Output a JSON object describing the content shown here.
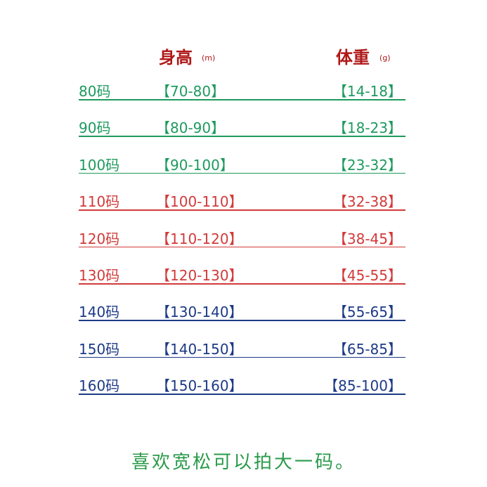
{
  "header": {
    "height_label": "身高",
    "height_unit": "(m)",
    "weight_label": "体重",
    "weight_unit": "(g)"
  },
  "table": {
    "rows": [
      {
        "size": "80码",
        "height": "【70-80】",
        "weight": "【14-18】",
        "color": "#1e9a5e"
      },
      {
        "size": "90码",
        "height": "【80-90】",
        "weight": "【18-23】",
        "color": "#1e9a5e"
      },
      {
        "size": "100码",
        "height": "【90-100】",
        "weight": "【23-32】",
        "color": "#1e9a5e"
      },
      {
        "size": "110码",
        "height": "【100-110】",
        "weight": "【32-38】",
        "color": "#d23a3a"
      },
      {
        "size": "120码",
        "height": "【110-120】",
        "weight": "【38-45】",
        "color": "#d23a3a"
      },
      {
        "size": "130码",
        "height": "【120-130】",
        "weight": "【45-55】",
        "color": "#d23a3a"
      },
      {
        "size": "140码",
        "height": "【130-140】",
        "weight": "【55-65】",
        "color": "#1c3a86"
      },
      {
        "size": "150码",
        "height": "【140-150】",
        "weight": "【65-85】",
        "color": "#1c3a86"
      },
      {
        "size": "160码",
        "height": "【150-160】",
        "weight": "【85-100】",
        "color": "#1c3a86"
      }
    ]
  },
  "footer": {
    "note": "喜欢宽松可以拍大一码。"
  }
}
